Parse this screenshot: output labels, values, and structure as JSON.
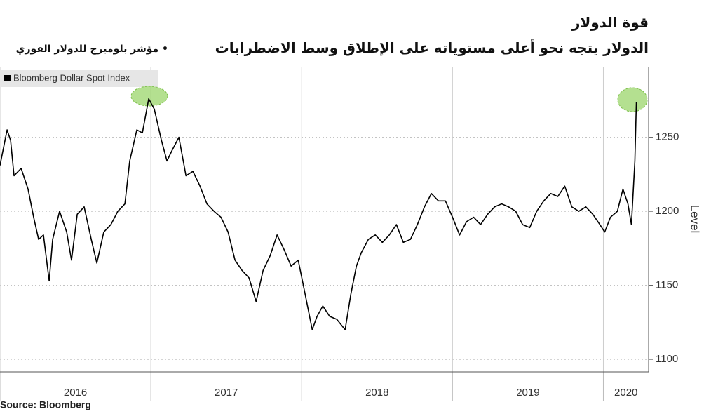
{
  "chart_data": {
    "type": "line",
    "title": "قوة الدولار",
    "subtitle": "الدولار يتجه نحو أعلى مستوياته على الإطلاق وسط الاضطرابات",
    "series_label": "• مؤشر بلومبرج للدولار الفوري",
    "ylabel": "Level",
    "source": "Source: Bloomberg",
    "x": [
      2016.0,
      2016.047,
      2016.07,
      2016.093,
      2016.14,
      2016.186,
      2016.223,
      2016.256,
      2016.288,
      2016.326,
      2016.349,
      2016.395,
      2016.442,
      2016.474,
      2016.512,
      2016.558,
      2016.605,
      2016.642,
      2016.688,
      2016.735,
      2016.781,
      2016.828,
      2016.86,
      2016.907,
      2016.944,
      2016.986,
      2017.023,
      2017.07,
      2017.107,
      2017.14,
      2017.186,
      2017.233,
      2017.279,
      2017.326,
      2017.372,
      2017.419,
      2017.465,
      2017.512,
      2017.558,
      2017.605,
      2017.651,
      2017.698,
      2017.744,
      2017.791,
      2017.837,
      2017.884,
      2017.93,
      2017.977,
      2018.023,
      2018.07,
      2018.102,
      2018.14,
      2018.186,
      2018.233,
      2018.288,
      2018.326,
      2018.363,
      2018.395,
      2018.442,
      2018.488,
      2018.535,
      2018.581,
      2018.628,
      2018.674,
      2018.721,
      2018.767,
      2018.814,
      2018.86,
      2018.907,
      2018.953,
      2019.0,
      2019.047,
      2019.093,
      2019.14,
      2019.186,
      2019.233,
      2019.279,
      2019.326,
      2019.372,
      2019.419,
      2019.465,
      2019.512,
      2019.558,
      2019.605,
      2019.651,
      2019.698,
      2019.744,
      2019.791,
      2019.837,
      2019.884,
      2019.93,
      2019.977,
      2020.009,
      2020.047,
      2020.093,
      2020.13,
      2020.163,
      2020.186,
      2020.209,
      2020.219
    ],
    "series": [
      {
        "name": "Bloomberg Dollar Spot Index",
        "color": "#000000",
        "values": [
          1231,
          1255,
          1248,
          1224,
          1229,
          1215,
          1196,
          1181,
          1184,
          1153,
          1181,
          1200,
          1186,
          1167,
          1198,
          1203,
          1181,
          1165,
          1186,
          1191,
          1200,
          1205,
          1234,
          1255,
          1253,
          1276,
          1269,
          1248,
          1234,
          1241,
          1250,
          1224,
          1227,
          1217,
          1205,
          1200,
          1196,
          1186,
          1167,
          1160,
          1155,
          1139,
          1160,
          1170,
          1184,
          1174,
          1163,
          1167,
          1144,
          1120,
          1129,
          1136,
          1129,
          1127,
          1120,
          1144,
          1163,
          1172,
          1181,
          1184,
          1179,
          1184,
          1191,
          1179,
          1181,
          1191,
          1203,
          1212,
          1207,
          1207,
          1196,
          1184,
          1193,
          1196,
          1191,
          1198,
          1203,
          1205,
          1203,
          1200,
          1191,
          1189,
          1200,
          1207,
          1212,
          1210,
          1217,
          1203,
          1200,
          1203,
          1198,
          1191,
          1186,
          1196,
          1200,
          1215,
          1205,
          1191,
          1234,
          1274
        ]
      }
    ],
    "xlim": [
      2016,
      2020.3
    ],
    "xticks": [
      2016,
      2017,
      2018,
      2019,
      2020
    ],
    "ylim": [
      1091.5,
      1297.7
    ],
    "yticks": [
      1100,
      1150,
      1200,
      1250
    ],
    "grid": true
  }
}
